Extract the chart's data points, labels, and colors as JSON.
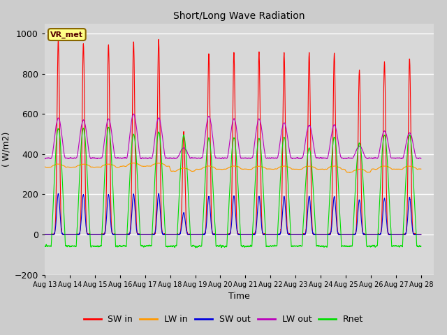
{
  "title": "Short/Long Wave Radiation",
  "xlabel": "Time",
  "ylabel": "( W/m2)",
  "ylim": [
    -200,
    1050
  ],
  "xlim": [
    0,
    15.5
  ],
  "legend_label": "VR_met",
  "series_labels": [
    "SW in",
    "LW in",
    "SW out",
    "LW out",
    "Rnet"
  ],
  "series_colors": [
    "#ff0000",
    "#ff9900",
    "#0000dd",
    "#bb00bb",
    "#00dd00"
  ],
  "xtick_labels": [
    "Aug 13",
    "Aug 14",
    "Aug 15",
    "Aug 16",
    "Aug 17",
    "Aug 18",
    "Aug 19",
    "Aug 20",
    "Aug 21",
    "Aug 22",
    "Aug 23",
    "Aug 24",
    "Aug 25",
    "Aug 26",
    "Aug 27",
    "Aug 28"
  ],
  "background_color": "#cccccc",
  "plot_bg_color": "#d8d8d8",
  "grid_color": "#ffffff",
  "num_days": 15,
  "sw_in_peaks": [
    970,
    950,
    945,
    960,
    970,
    510,
    900,
    905,
    905,
    905,
    903,
    900,
    820,
    855,
    875
  ],
  "lw_out_peaks": [
    580,
    570,
    575,
    600,
    580,
    430,
    590,
    575,
    575,
    555,
    545,
    545,
    440,
    515,
    505
  ],
  "rnet_peaks": [
    530,
    530,
    535,
    500,
    510,
    490,
    480,
    480,
    480,
    485,
    430,
    485,
    455,
    495,
    495
  ],
  "lw_in_base": [
    340,
    340,
    340,
    345,
    345,
    320,
    330,
    330,
    330,
    330,
    330,
    330,
    315,
    330,
    330
  ],
  "sunrise": 6.5,
  "sunset": 19.5,
  "pts_per_day": 288
}
